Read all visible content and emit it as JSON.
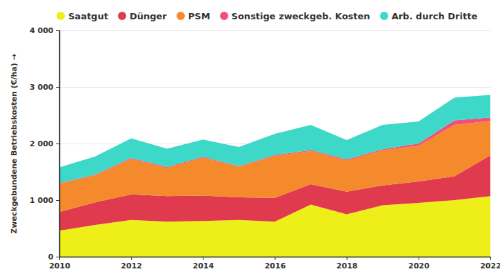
{
  "chart_data": {
    "type": "area",
    "stacked": true,
    "grid": true,
    "legend": "top",
    "y_label": "Zweckgebundene Betriebskosten (€/ha)",
    "x": [
      2010,
      2011,
      2012,
      2013,
      2014,
      2015,
      2016,
      2017,
      2018,
      2019,
      2020,
      2021,
      2022
    ],
    "xlim": [
      2010,
      2022
    ],
    "xticks": [
      2010,
      2012,
      2014,
      2016,
      2018,
      2020,
      2022
    ],
    "ylim": [
      0,
      4000
    ],
    "yticks": [
      0,
      {
        "value": 1000,
        "label": "1 000"
      },
      {
        "value": 2000,
        "label": "2 000"
      },
      {
        "value": 3000,
        "label": "3 000"
      },
      {
        "value": 4000,
        "label": "4 000"
      }
    ],
    "series": [
      {
        "name": "Saatgut",
        "color": "#eeee18",
        "values": [
          460,
          560,
          650,
          620,
          630,
          650,
          620,
          920,
          750,
          910,
          950,
          1000,
          1070
        ]
      },
      {
        "name": "Dünger",
        "color": "#e03a4e",
        "values": [
          330,
          400,
          450,
          450,
          450,
          400,
          420,
          360,
          400,
          350,
          380,
          420,
          720
        ]
      },
      {
        "name": "PSM",
        "color": "#f58a2c",
        "values": [
          500,
          480,
          630,
          500,
          670,
          540,
          740,
          590,
          550,
          620,
          630,
          910,
          610
        ]
      },
      {
        "name": "Sonstige zweckgeb. Kosten",
        "color": "#f0507a",
        "values": [
          10,
          10,
          15,
          15,
          15,
          10,
          15,
          15,
          20,
          20,
          40,
          80,
          60
        ]
      },
      {
        "name": "Arb. durch Dritte",
        "color": "#3ed8c8",
        "values": [
          280,
          320,
          345,
          325,
          305,
          340,
          375,
          445,
          340,
          430,
          390,
          400,
          400
        ]
      }
    ]
  }
}
